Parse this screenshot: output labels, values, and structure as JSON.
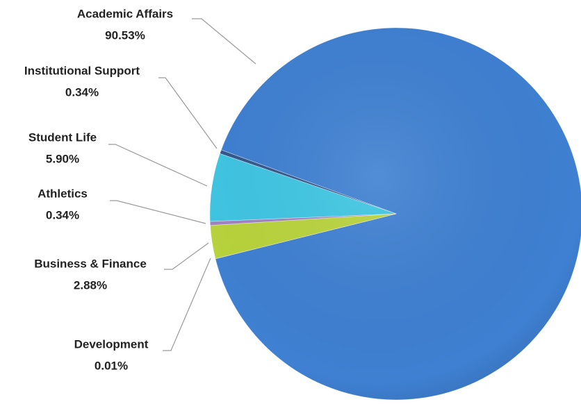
{
  "chart_data": {
    "type": "pie",
    "categories": [
      "Academic Affairs",
      "Institutional  Support",
      "Student Life",
      "Athletics",
      "Business & Finance",
      "Development"
    ],
    "values": [
      90.53,
      0.34,
      5.9,
      0.34,
      2.88,
      0.01
    ],
    "value_labels": [
      "90.53%",
      "0.34%",
      "5.90%",
      "0.34%",
      "2.88%",
      "0.01%"
    ],
    "colors": [
      "#3f80d2",
      "#34598f",
      "#3fc6e3",
      "#a283c4",
      "#b9d43c",
      "#c24a3e"
    ]
  }
}
